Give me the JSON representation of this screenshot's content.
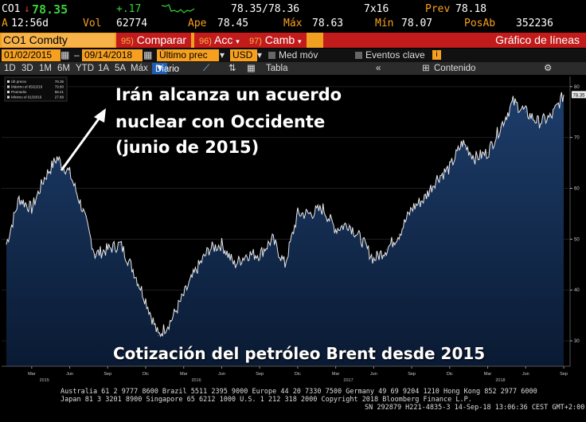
{
  "quote_bar": {
    "ticker": "CO1",
    "last": "78.35",
    "change": "+.17",
    "time_label": "A",
    "time": "12:56d",
    "vol_label": "Vol",
    "vol": "62774",
    "bid_ask": "78.35/78.36",
    "size": "7x16",
    "prev_label": "Prev",
    "prev": "78.18",
    "open_label": "Ape",
    "open": "78.45",
    "high_label": "Máx",
    "high": "78.63",
    "low_label": "Mín",
    "low": "78.07",
    "oi_label": "PosAb",
    "oi": "352236"
  },
  "toolbar": {
    "security": "CO1 Comdty",
    "compare_num": "95)",
    "compare": "Comparar",
    "actions_num": "96)",
    "actions": "Acc",
    "change_num": "97)",
    "change": "Camb",
    "chart_title": "Gráfico de líneas"
  },
  "controls": {
    "start_date": "01/02/2015",
    "end_date": "09/14/2018",
    "price_field": "Último prec",
    "currency": "USD",
    "moving_avg": "Med móv",
    "events": "Eventos clave"
  },
  "periods": [
    "1D",
    "3D",
    "1M",
    "6M",
    "YTD",
    "1A",
    "5A",
    "Máx"
  ],
  "frequency": "Diario",
  "table_label": "Tabla",
  "content_label": "Contenido",
  "legend": [
    {
      "label": "Últ precio",
      "value": "78.35"
    },
    {
      "label": "Máximo el 05/22/18",
      "value": "79.80"
    },
    {
      "label": "Promedio",
      "value": "58.21"
    },
    {
      "label": "Mínimo el 01/20/16",
      "value": "27.88"
    }
  ],
  "annotation": {
    "line1": "Irán alcanza un acuerdo",
    "line2": "nuclear con Occidente",
    "line3": "(junio de 2015)"
  },
  "bottom_title": "Cotización del petróleo Brent desde 2015",
  "chart_data": {
    "type": "area",
    "title": "Cotización del petróleo Brent desde 2015",
    "x_ticks": [
      "Mar",
      "Jun",
      "Sep",
      "Dic",
      "Mar",
      "Jun",
      "Sep",
      "Dic",
      "Mar",
      "Jun",
      "Sep",
      "Dic",
      "Mar",
      "Jun",
      "Sep"
    ],
    "year_labels": [
      "2015",
      "2016",
      "2017",
      "2018"
    ],
    "ylim": [
      25,
      82
    ],
    "y_ticks": [
      30,
      40,
      50,
      60,
      70,
      80
    ],
    "last_price_tag": "78.35",
    "series": [
      {
        "x": [
          "2015-01",
          "2015-02",
          "2015-03",
          "2015-04",
          "2015-05",
          "2015-06",
          "2015-07",
          "2015-08",
          "2015-09",
          "2015-10",
          "2015-11",
          "2015-12",
          "2016-01",
          "2016-02",
          "2016-03",
          "2016-04",
          "2016-05",
          "2016-06",
          "2016-07",
          "2016-08",
          "2016-09",
          "2016-10",
          "2016-11",
          "2016-12",
          "2017-01",
          "2017-02",
          "2017-03",
          "2017-04",
          "2017-05",
          "2017-06",
          "2017-07",
          "2017-08",
          "2017-09",
          "2017-10",
          "2017-11",
          "2017-12",
          "2018-01",
          "2018-02",
          "2018-03",
          "2018-04",
          "2018-05",
          "2018-06",
          "2018-07",
          "2018-08",
          "2018-09"
        ],
        "values": [
          49,
          58,
          56,
          62,
          66,
          63,
          56,
          47,
          48,
          49,
          44,
          38,
          31,
          34,
          39,
          44,
          48,
          49,
          45,
          47,
          47,
          50,
          45,
          55,
          55,
          56,
          52,
          53,
          50,
          46,
          48,
          51,
          56,
          58,
          62,
          64,
          69,
          66,
          67,
          72,
          77,
          75,
          73,
          74,
          78.35
        ]
      }
    ]
  },
  "footer": {
    "line1": "Australia 61 2 9777 8600 Brazil 5511 2395 9000 Europe 44 20 7330 7500 Germany 49 69 9204 1210 Hong Kong 852 2977 6000",
    "line2": "Japan 81 3 3201 8900        Singapore 65 6212 1000       U.S. 1 212 318 2000        Copyright 2018 Bloomberg Finance L.P.",
    "line3": "SN 292879 H221-4835-3 14-Sep-18 13:06:36 CEST GMT+2:00"
  }
}
